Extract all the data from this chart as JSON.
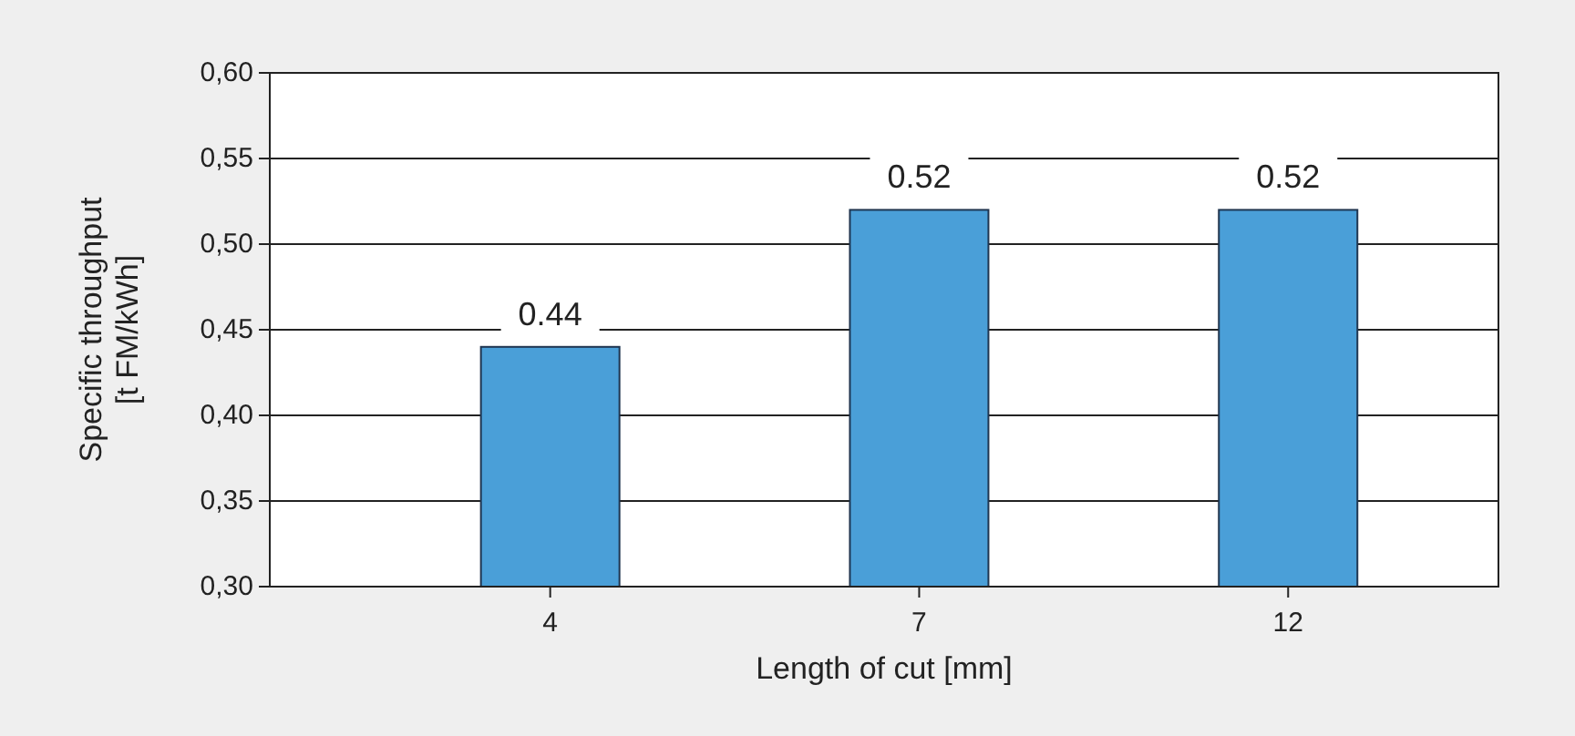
{
  "chart_data": {
    "type": "bar",
    "xlabel": "Length of cut [mm]",
    "ylabel": "Specific throughput\n[t FM/kWh]",
    "categories": [
      "4",
      "7",
      "12"
    ],
    "values": [
      0.44,
      0.52,
      0.52
    ],
    "color": "#4a9fd8",
    "ylim": [
      0.3,
      0.6
    ],
    "yticks": [
      {
        "value": 0.3,
        "label": "0,30"
      },
      {
        "value": 0.35,
        "label": "0,35"
      },
      {
        "value": 0.4,
        "label": "0,40"
      },
      {
        "value": 0.45,
        "label": "0,45"
      },
      {
        "value": 0.5,
        "label": "0,50"
      },
      {
        "value": 0.55,
        "label": "0,55"
      },
      {
        "value": 0.6,
        "label": "0,60"
      }
    ],
    "grid": "y",
    "data_labels": true
  }
}
